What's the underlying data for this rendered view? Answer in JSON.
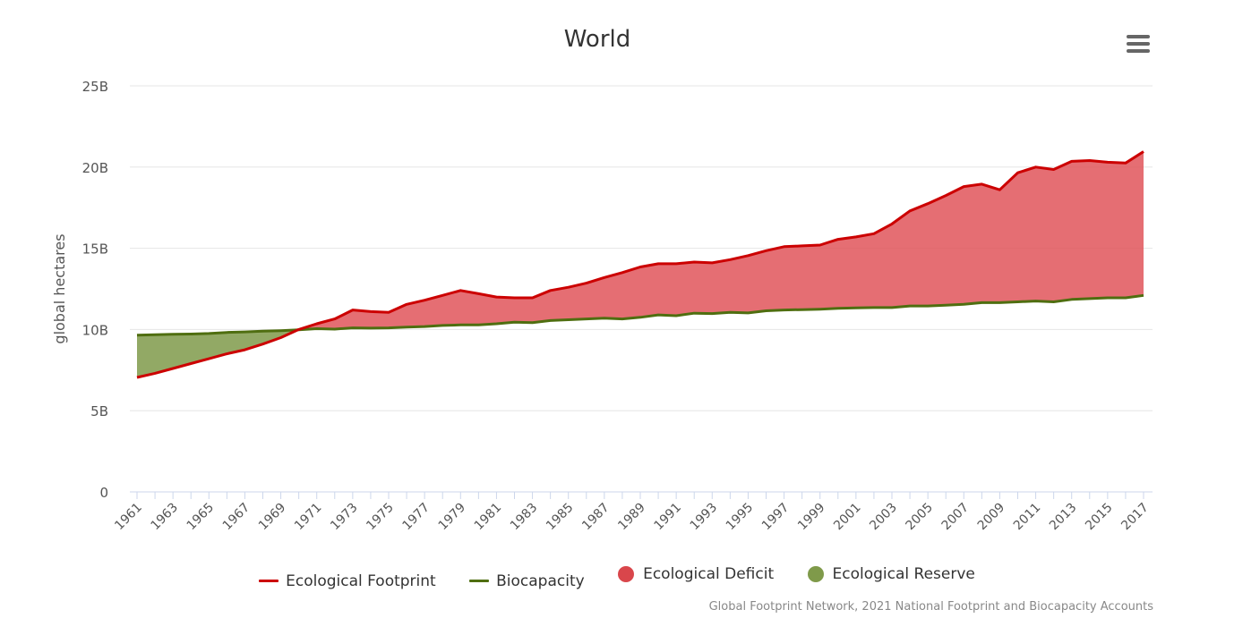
{
  "chart_data": {
    "type": "line",
    "title": "World",
    "ylabel": "global hectares",
    "xlabel": "",
    "ylim": [
      0,
      25000000000
    ],
    "ytick_values": [
      0,
      5000000000,
      10000000000,
      15000000000,
      20000000000,
      25000000000
    ],
    "ytick_labels": [
      "0",
      "5B",
      "10B",
      "15B",
      "20B",
      "25B"
    ],
    "xtick_labels": [
      "1961",
      "1963",
      "1965",
      "1967",
      "1969",
      "1971",
      "1973",
      "1975",
      "1977",
      "1979",
      "1981",
      "1983",
      "1985",
      "1987",
      "1989",
      "1991",
      "1993",
      "1995",
      "1997",
      "1999",
      "2001",
      "2003",
      "2005",
      "2007",
      "2009",
      "2011",
      "2013",
      "2015",
      "2017"
    ],
    "grid": true,
    "legend_position": "bottom-center",
    "x": [
      1961,
      1962,
      1963,
      1964,
      1965,
      1966,
      1967,
      1968,
      1969,
      1970,
      1971,
      1972,
      1973,
      1974,
      1975,
      1976,
      1977,
      1978,
      1979,
      1980,
      1981,
      1982,
      1983,
      1984,
      1985,
      1986,
      1987,
      1988,
      1989,
      1990,
      1991,
      1992,
      1993,
      1994,
      1995,
      1996,
      1997,
      1998,
      1999,
      2000,
      2001,
      2002,
      2003,
      2004,
      2005,
      2006,
      2007,
      2008,
      2009,
      2010,
      2011,
      2012,
      2013,
      2014,
      2015,
      2016,
      2017
    ],
    "series": [
      {
        "name": "Ecological Footprint",
        "color": "#cc0000",
        "values": [
          7.05,
          7.3,
          7.6,
          7.9,
          8.2,
          8.5,
          8.75,
          9.1,
          9.5,
          10.0,
          10.35,
          10.65,
          11.2,
          11.1,
          11.05,
          11.55,
          11.8,
          12.1,
          12.4,
          12.2,
          12.0,
          11.95,
          11.95,
          12.4,
          12.6,
          12.85,
          13.2,
          13.5,
          13.85,
          14.05,
          14.05,
          14.15,
          14.1,
          14.3,
          14.55,
          14.85,
          15.1,
          15.15,
          15.2,
          15.55,
          15.7,
          15.9,
          16.5,
          17.3,
          17.75,
          18.25,
          18.8,
          18.95,
          18.6,
          19.65,
          20.0,
          19.85,
          20.35,
          20.4,
          20.3,
          20.25,
          20.95
        ]
      },
      {
        "name": "Biocapacity",
        "color": "#4f6e10",
        "values": [
          9.65,
          9.68,
          9.7,
          9.72,
          9.75,
          9.82,
          9.85,
          9.9,
          9.93,
          9.98,
          10.05,
          10.02,
          10.1,
          10.08,
          10.1,
          10.15,
          10.18,
          10.25,
          10.28,
          10.28,
          10.35,
          10.45,
          10.42,
          10.55,
          10.6,
          10.65,
          10.7,
          10.65,
          10.75,
          10.9,
          10.85,
          11.0,
          10.98,
          11.05,
          11.02,
          11.15,
          11.2,
          11.22,
          11.25,
          11.3,
          11.33,
          11.35,
          11.35,
          11.45,
          11.45,
          11.5,
          11.55,
          11.65,
          11.65,
          11.7,
          11.75,
          11.7,
          11.85,
          11.9,
          11.95,
          11.95,
          12.1
        ]
      }
    ],
    "areas": [
      {
        "name": "Ecological Deficit",
        "color": "#e0555a"
      },
      {
        "name": "Ecological Reserve",
        "color": "#7f9a4a"
      }
    ],
    "value_unit_multiplier": 1000000000
  },
  "legend": {
    "items": [
      {
        "label": "Ecological Footprint",
        "kind": "line",
        "color": "#cc0000"
      },
      {
        "label": "Biocapacity",
        "kind": "line",
        "color": "#4f6e10"
      },
      {
        "label": "Ecological Deficit",
        "kind": "dot",
        "color": "#d9464b"
      },
      {
        "label": "Ecological Reserve",
        "kind": "dot",
        "color": "#7f9a4a"
      }
    ]
  },
  "menu": {
    "icon": "hamburger-menu-icon"
  },
  "credit": "Global Footprint Network, 2021 National Footprint and Biocapacity Accounts"
}
